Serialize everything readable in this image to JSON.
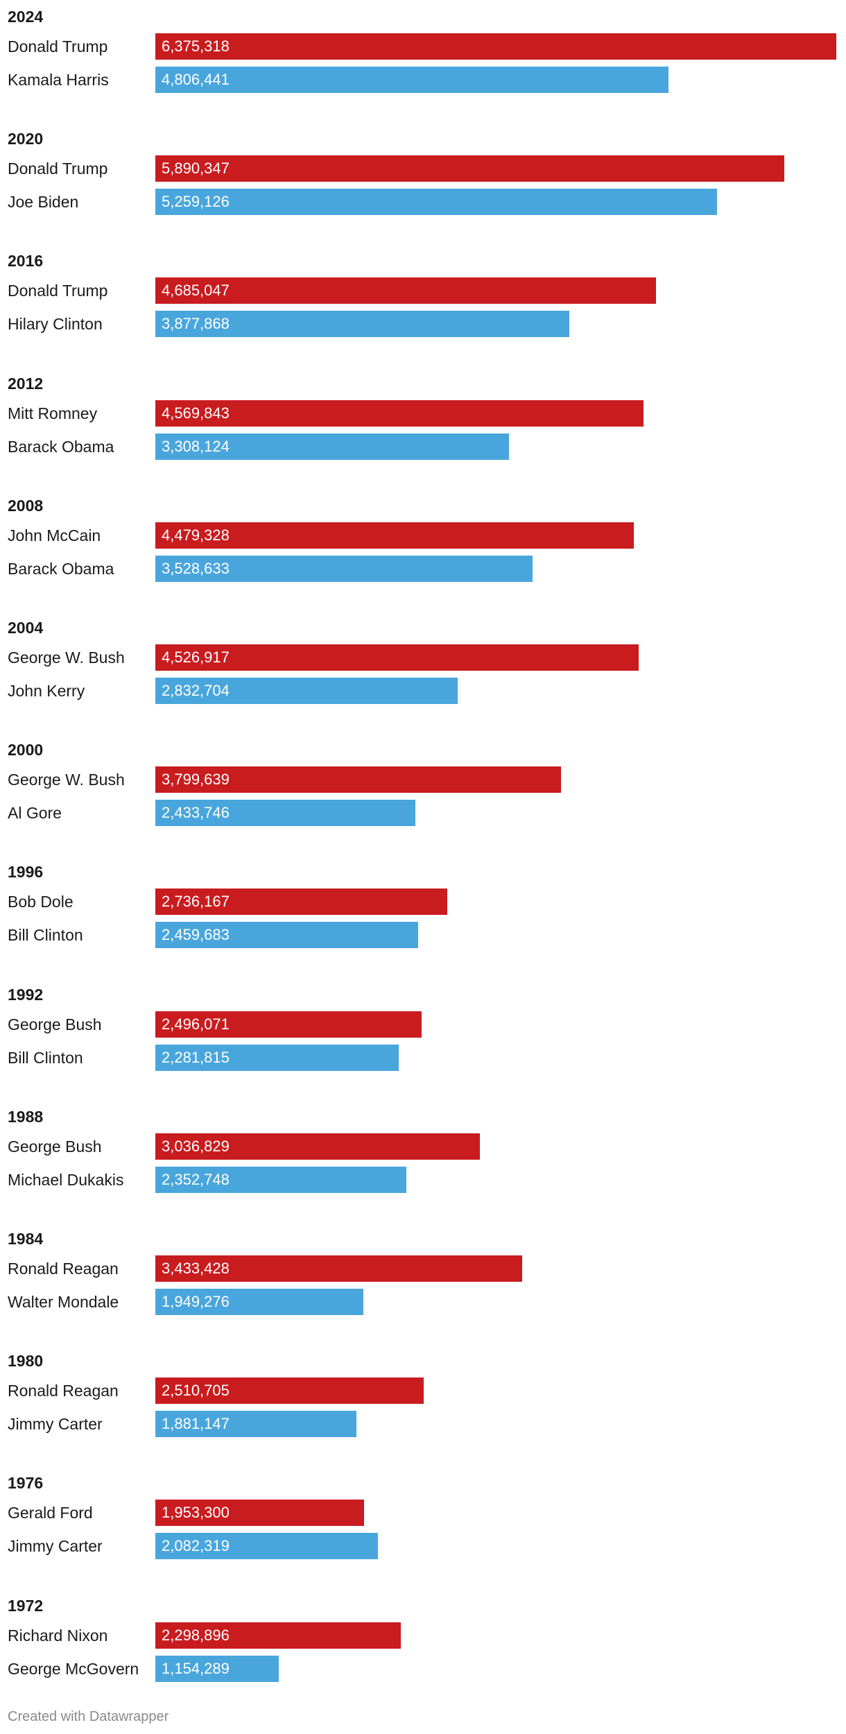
{
  "colors": {
    "republican": "#c91c1f",
    "democrat": "#49a6dc"
  },
  "chart_data": {
    "type": "bar",
    "orientation": "horizontal",
    "title": "",
    "xlabel": "",
    "ylabel": "",
    "xlim": [
      0,
      6375318
    ],
    "grid": false,
    "groups": [
      {
        "year": "2024",
        "rows": [
          {
            "name": "Donald Trump",
            "party": "republican",
            "value": 6375318,
            "label": "6,375,318"
          },
          {
            "name": "Kamala Harris",
            "party": "democrat",
            "value": 4806441,
            "label": "4,806,441"
          }
        ]
      },
      {
        "year": "2020",
        "rows": [
          {
            "name": "Donald Trump",
            "party": "republican",
            "value": 5890347,
            "label": "5,890,347"
          },
          {
            "name": "Joe Biden",
            "party": "democrat",
            "value": 5259126,
            "label": "5,259,126"
          }
        ]
      },
      {
        "year": "2016",
        "rows": [
          {
            "name": "Donald Trump",
            "party": "republican",
            "value": 4685047,
            "label": "4,685,047"
          },
          {
            "name": "Hilary Clinton",
            "party": "democrat",
            "value": 3877868,
            "label": "3,877,868"
          }
        ]
      },
      {
        "year": "2012",
        "rows": [
          {
            "name": "Mitt Romney",
            "party": "republican",
            "value": 4569843,
            "label": "4,569,843"
          },
          {
            "name": "Barack Obama",
            "party": "democrat",
            "value": 3308124,
            "label": "3,308,124"
          }
        ]
      },
      {
        "year": "2008",
        "rows": [
          {
            "name": "John McCain",
            "party": "republican",
            "value": 4479328,
            "label": "4,479,328"
          },
          {
            "name": "Barack Obama",
            "party": "democrat",
            "value": 3528633,
            "label": "3,528,633"
          }
        ]
      },
      {
        "year": "2004",
        "rows": [
          {
            "name": "George W. Bush",
            "party": "republican",
            "value": 4526917,
            "label": "4,526,917"
          },
          {
            "name": "John Kerry",
            "party": "democrat",
            "value": 2832704,
            "label": "2,832,704"
          }
        ]
      },
      {
        "year": "2000",
        "rows": [
          {
            "name": "George W. Bush",
            "party": "republican",
            "value": 3799639,
            "label": "3,799,639"
          },
          {
            "name": "Al Gore",
            "party": "democrat",
            "value": 2433746,
            "label": "2,433,746"
          }
        ]
      },
      {
        "year": "1996",
        "rows": [
          {
            "name": "Bob Dole",
            "party": "republican",
            "value": 2736167,
            "label": "2,736,167"
          },
          {
            "name": "Bill Clinton",
            "party": "democrat",
            "value": 2459683,
            "label": "2,459,683"
          }
        ]
      },
      {
        "year": "1992",
        "rows": [
          {
            "name": "George Bush",
            "party": "republican",
            "value": 2496071,
            "label": "2,496,071"
          },
          {
            "name": "Bill Clinton",
            "party": "democrat",
            "value": 2281815,
            "label": "2,281,815"
          }
        ]
      },
      {
        "year": "1988",
        "rows": [
          {
            "name": "George Bush",
            "party": "republican",
            "value": 3036829,
            "label": "3,036,829"
          },
          {
            "name": "Michael Dukakis",
            "party": "democrat",
            "value": 2352748,
            "label": "2,352,748"
          }
        ]
      },
      {
        "year": "1984",
        "rows": [
          {
            "name": "Ronald Reagan",
            "party": "republican",
            "value": 3433428,
            "label": "3,433,428"
          },
          {
            "name": "Walter Mondale",
            "party": "democrat",
            "value": 1949276,
            "label": "1,949,276"
          }
        ]
      },
      {
        "year": "1980",
        "rows": [
          {
            "name": "Ronald Reagan",
            "party": "republican",
            "value": 2510705,
            "label": "2,510,705"
          },
          {
            "name": "Jimmy Carter",
            "party": "democrat",
            "value": 1881147,
            "label": "1,881,147"
          }
        ]
      },
      {
        "year": "1976",
        "rows": [
          {
            "name": "Gerald Ford",
            "party": "republican",
            "value": 1953300,
            "label": "1,953,300"
          },
          {
            "name": "Jimmy Carter",
            "party": "democrat",
            "value": 2082319,
            "label": "2,082,319"
          }
        ]
      },
      {
        "year": "1972",
        "rows": [
          {
            "name": "Richard Nixon",
            "party": "republican",
            "value": 2298896,
            "label": "2,298,896"
          },
          {
            "name": "George McGovern",
            "party": "democrat",
            "value": 1154289,
            "label": "1,154,289"
          }
        ]
      }
    ]
  },
  "footer": {
    "credit": "Created with Datawrapper"
  }
}
